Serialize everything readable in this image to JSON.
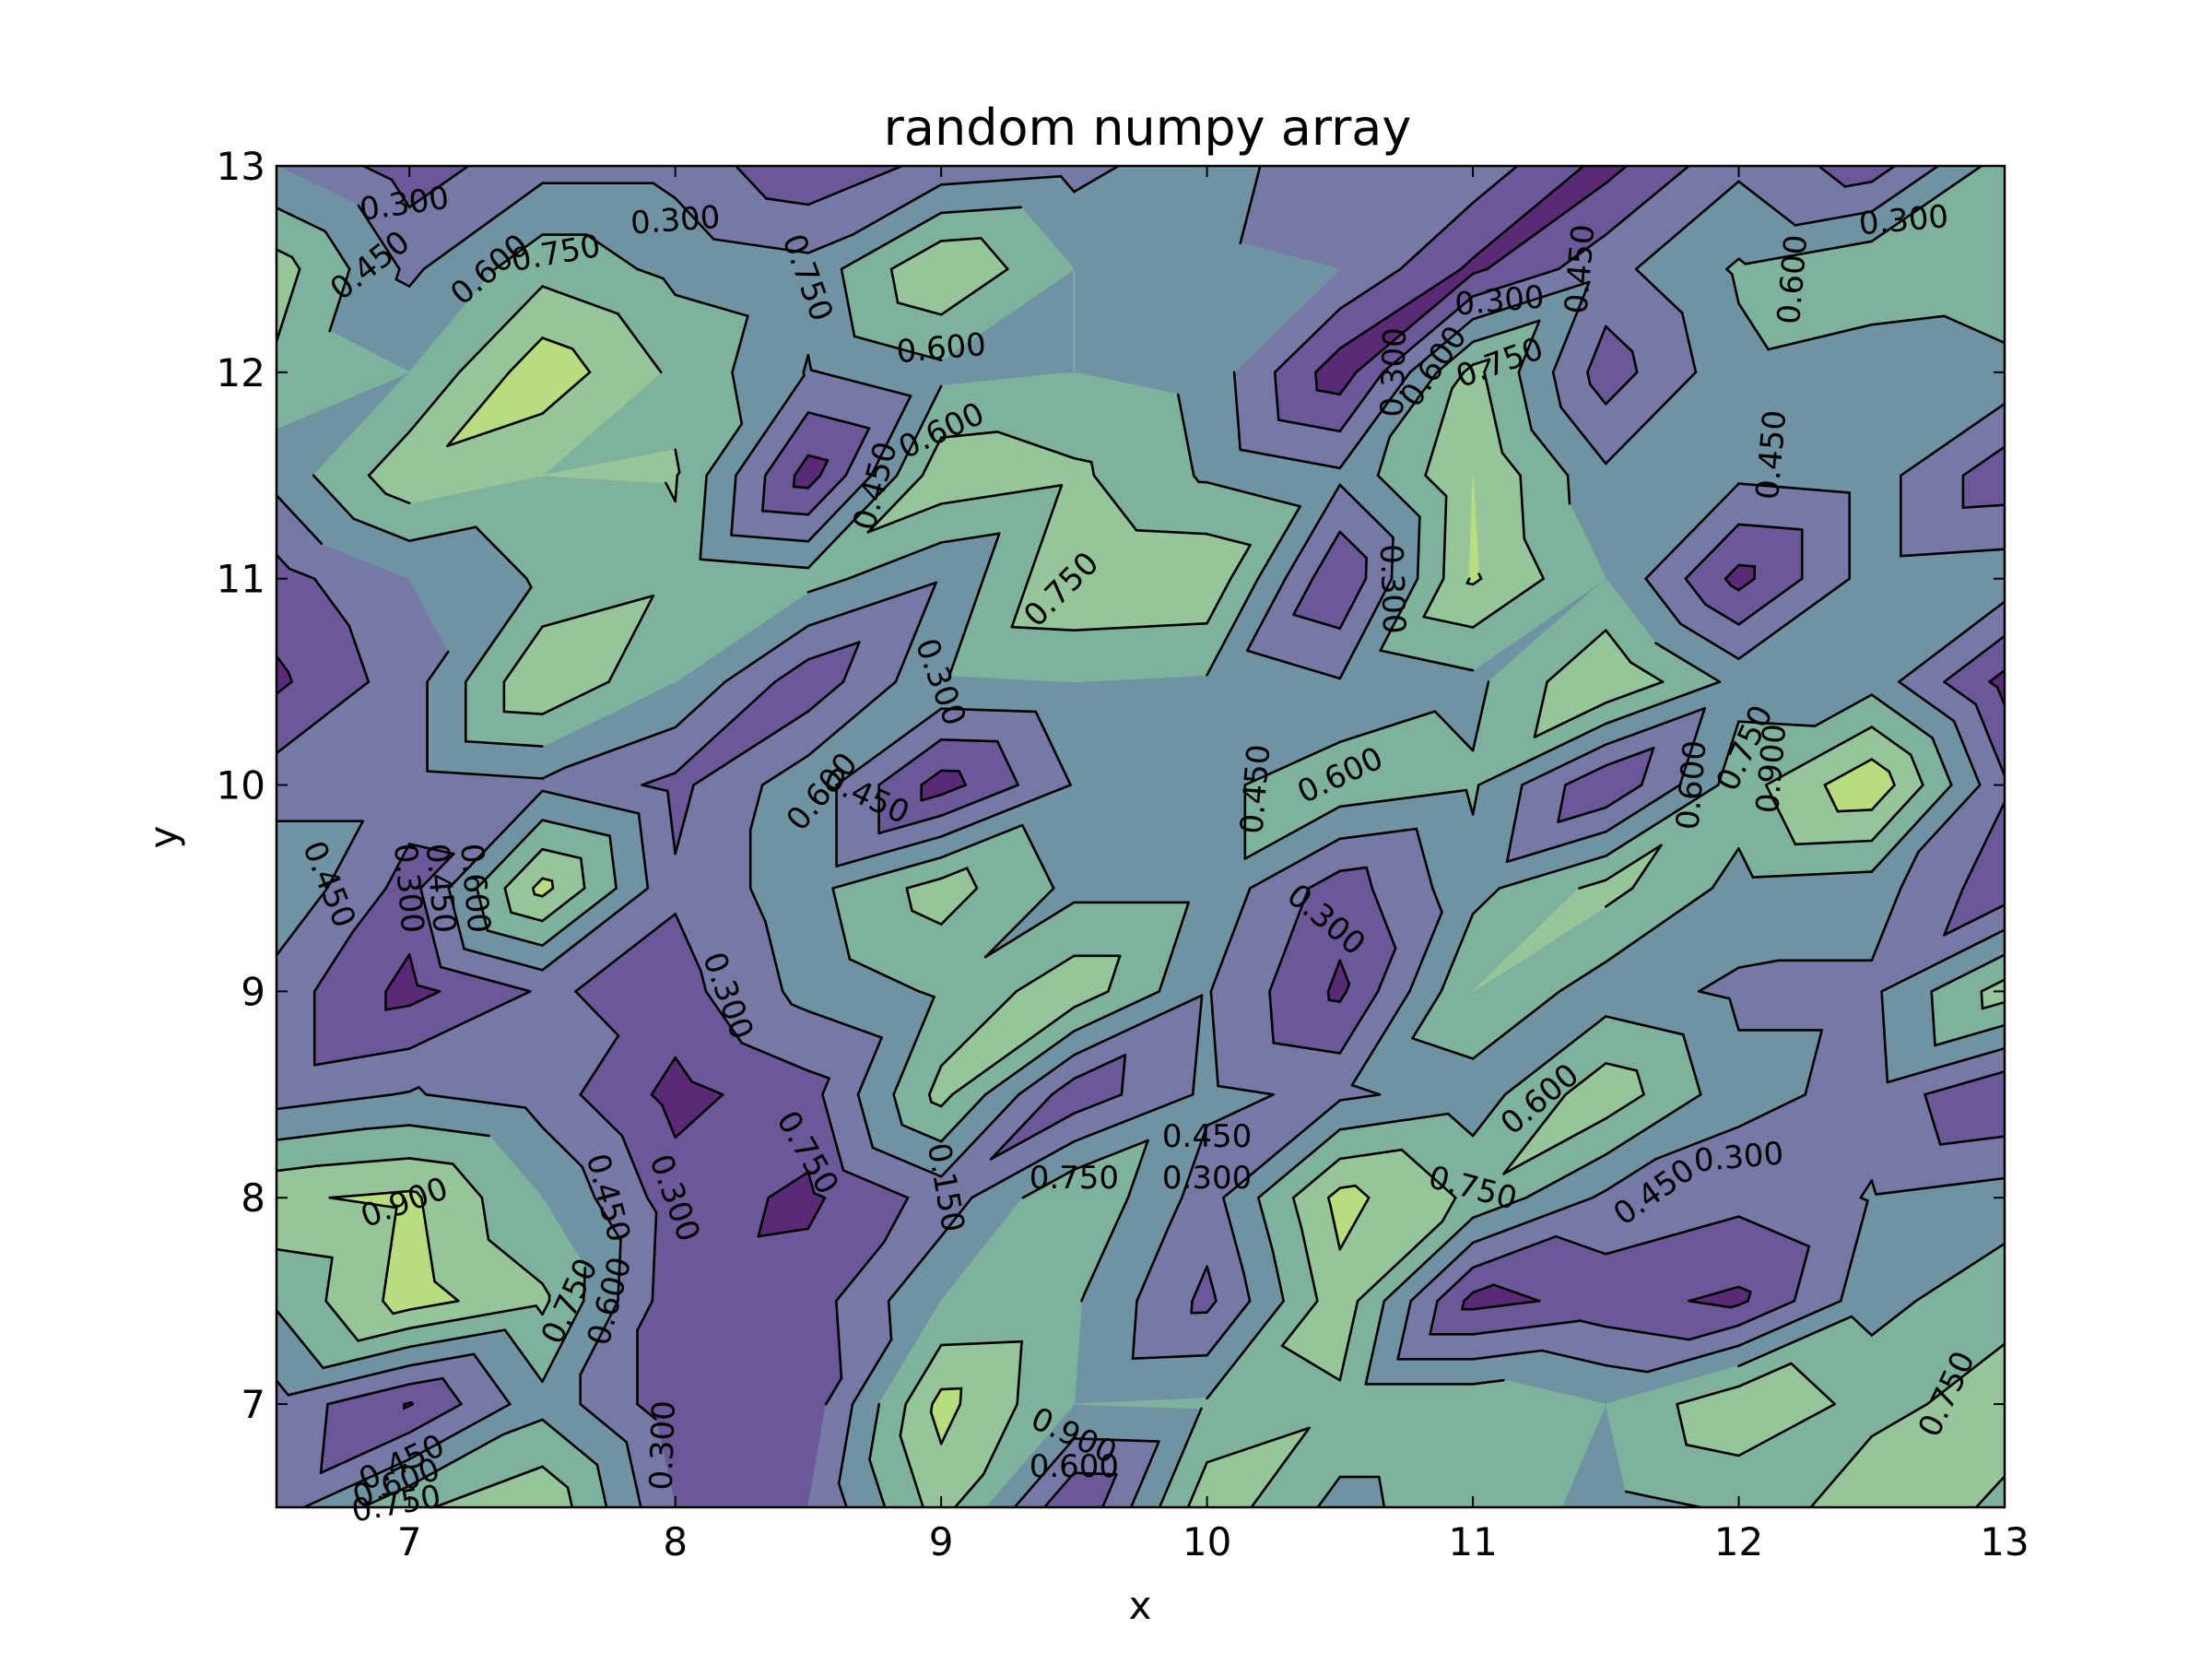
{
  "chart_data": {
    "type": "contourf",
    "title": "random numpy array",
    "xlabel": "x",
    "ylabel": "y",
    "xlim": [
      6.5,
      13
    ],
    "ylim": [
      6.5,
      13
    ],
    "x_ticks": [
      7,
      8,
      9,
      10,
      11,
      12,
      13
    ],
    "y_ticks": [
      7,
      8,
      9,
      10,
      11,
      12,
      13
    ],
    "x_tick_labels": [
      "7",
      "8",
      "9",
      "10",
      "11",
      "12",
      "13"
    ],
    "y_tick_labels": [
      "7",
      "8",
      "9",
      "10",
      "11",
      "12",
      "13"
    ],
    "levels": [
      0.0,
      0.15,
      0.3,
      0.45,
      0.6,
      0.75,
      0.9,
      1.05
    ],
    "level_colors": [
      "#5b2a76",
      "#6b5898",
      "#7679a5",
      "#6f93a3",
      "#7eb29c",
      "#96c59a",
      "#b8dd80",
      "#dfe864"
    ],
    "grid": false,
    "x": [
      6.5,
      7.0,
      7.5,
      8.0,
      8.5,
      9.0,
      9.5,
      10.0,
      10.5,
      11.0,
      11.5,
      12.0,
      12.5,
      13.0
    ],
    "y": [
      6.5,
      7.0,
      7.5,
      8.0,
      8.5,
      9.0,
      9.5,
      10.0,
      10.5,
      11.0,
      11.5,
      12.0,
      12.5,
      13.0
    ],
    "z": [
      [
        0.38,
        0.72,
        0.88,
        0.3,
        0.3,
        0.82,
        0.15,
        0.85,
        0.55,
        0.7,
        0.55,
        0.62,
        0.86,
        0.72
      ],
      [
        0.4,
        0.14,
        0.55,
        0.2,
        0.2,
        0.95,
        0.6,
        0.62,
        0.72,
        0.72,
        0.6,
        0.88,
        0.7,
        0.82
      ],
      [
        0.62,
        0.97,
        0.78,
        0.2,
        0.22,
        0.6,
        0.62,
        0.26,
        0.85,
        0.1,
        0.2,
        0.12,
        0.55,
        0.7
      ],
      [
        0.88,
        0.93,
        0.6,
        0.22,
        0.12,
        0.36,
        0.75,
        0.38,
        0.95,
        0.72,
        0.42,
        0.34,
        0.46,
        0.52
      ],
      [
        0.38,
        0.46,
        0.38,
        0.1,
        0.24,
        0.8,
        0.2,
        0.48,
        0.42,
        0.52,
        0.85,
        0.5,
        0.4,
        0.15
      ],
      [
        0.38,
        0.1,
        0.32,
        0.24,
        0.5,
        0.62,
        0.85,
        0.46,
        0.12,
        0.75,
        0.52,
        0.42,
        0.42,
        0.82
      ],
      [
        0.58,
        0.24,
        0.95,
        0.32,
        0.55,
        0.82,
        0.56,
        0.56,
        0.22,
        0.55,
        0.8,
        0.55,
        0.52,
        0.2
      ],
      [
        0.38,
        0.38,
        0.42,
        0.26,
        0.55,
        0.08,
        0.46,
        0.56,
        0.7,
        0.62,
        0.16,
        0.68,
        1.02,
        0.32
      ],
      [
        0.12,
        0.38,
        0.9,
        0.6,
        0.2,
        0.58,
        0.6,
        0.58,
        0.46,
        0.56,
        0.9,
        0.55,
        0.54,
        0.1
      ],
      [
        0.24,
        0.45,
        0.62,
        0.72,
        0.66,
        0.46,
        0.9,
        0.88,
        0.15,
        0.92,
        0.6,
        0.1,
        0.52,
        0.55
      ],
      [
        0.5,
        0.86,
        0.75,
        0.76,
        0.08,
        0.86,
        0.78,
        0.58,
        0.48,
        0.9,
        0.48,
        0.48,
        0.52,
        0.2
      ],
      [
        0.72,
        0.6,
        1.0,
        0.72,
        0.44,
        0.56,
        0.6,
        0.55,
        0.06,
        0.8,
        0.22,
        0.56,
        0.48,
        0.56
      ],
      [
        0.82,
        0.42,
        0.7,
        0.56,
        0.5,
        0.9,
        0.6,
        0.5,
        0.45,
        0.12,
        0.4,
        0.62,
        0.74,
        0.7
      ],
      [
        0.45,
        0.22,
        0.4,
        0.4,
        0.18,
        0.35,
        0.4,
        0.55,
        0.3,
        0.4,
        0.1,
        0.42,
        0.22,
        0.68
      ]
    ],
    "contour_labels": [
      {
        "text": "0.300",
        "x": 6.98,
        "y": 12.82,
        "angle": -8
      },
      {
        "text": "0.300",
        "x": 8.0,
        "y": 12.74,
        "angle": -4
      },
      {
        "text": "0.450",
        "x": 6.85,
        "y": 12.52,
        "angle": -38
      },
      {
        "text": "0.600",
        "x": 7.3,
        "y": 12.5,
        "angle": -40
      },
      {
        "text": "0.750",
        "x": 7.55,
        "y": 12.58,
        "angle": -10
      },
      {
        "text": "0.750",
        "x": 8.5,
        "y": 12.46,
        "angle": 70
      },
      {
        "text": "0.600",
        "x": 9.0,
        "y": 12.12,
        "angle": -5
      },
      {
        "text": "0.600",
        "x": 9.0,
        "y": 11.72,
        "angle": -25
      },
      {
        "text": "0.450",
        "x": 8.75,
        "y": 11.45,
        "angle": -75
      },
      {
        "text": "0.750",
        "x": 9.45,
        "y": 10.95,
        "angle": -45
      },
      {
        "text": "0.300",
        "x": 9.0,
        "y": 10.5,
        "angle": 70
      },
      {
        "text": "0.300",
        "x": 10.7,
        "y": 12.0,
        "angle": -88
      },
      {
        "text": "0.600",
        "x": 10.85,
        "y": 12.03,
        "angle": -55
      },
      {
        "text": "0.750",
        "x": 11.1,
        "y": 12.05,
        "angle": -20
      },
      {
        "text": "0.300",
        "x": 10.7,
        "y": 10.95,
        "angle": 88
      },
      {
        "text": "0.300",
        "x": 11.1,
        "y": 12.35,
        "angle": -5
      },
      {
        "text": "0.450",
        "x": 11.4,
        "y": 12.5,
        "angle": -85
      },
      {
        "text": "0.600",
        "x": 12.2,
        "y": 12.45,
        "angle": -85
      },
      {
        "text": "0.300",
        "x": 12.62,
        "y": 12.74,
        "angle": -5
      },
      {
        "text": "0.450",
        "x": 12.12,
        "y": 11.6,
        "angle": -85
      },
      {
        "text": "0.600",
        "x": 8.55,
        "y": 9.97,
        "angle": -50
      },
      {
        "text": "0.450",
        "x": 8.72,
        "y": 9.95,
        "angle": 25
      },
      {
        "text": "0.450",
        "x": 10.18,
        "y": 9.98,
        "angle": -85
      },
      {
        "text": "0.600",
        "x": 10.5,
        "y": 10.05,
        "angle": -25
      },
      {
        "text": "0.300",
        "x": 10.45,
        "y": 9.35,
        "angle": 40
      },
      {
        "text": "0.600",
        "x": 11.82,
        "y": 10.0,
        "angle": -85
      },
      {
        "text": "0.750",
        "x": 12.02,
        "y": 10.18,
        "angle": -65
      },
      {
        "text": "0.900",
        "x": 12.12,
        "y": 10.08,
        "angle": -85
      },
      {
        "text": "0.450",
        "x": 6.7,
        "y": 9.52,
        "angle": 68
      },
      {
        "text": "0.300",
        "x": 7.0,
        "y": 9.5,
        "angle": 85
      },
      {
        "text": "0.450",
        "x": 7.12,
        "y": 9.5,
        "angle": 85
      },
      {
        "text": "0.600",
        "x": 7.25,
        "y": 9.5,
        "angle": 85
      },
      {
        "text": "0.300",
        "x": 8.2,
        "y": 8.98,
        "angle": 70
      },
      {
        "text": "0.750",
        "x": 8.5,
        "y": 8.22,
        "angle": 60
      },
      {
        "text": "0.450",
        "x": 7.75,
        "y": 8.0,
        "angle": 75
      },
      {
        "text": "0.300",
        "x": 8.0,
        "y": 8.0,
        "angle": 70
      },
      {
        "text": "0.150",
        "x": 9.02,
        "y": 8.05,
        "angle": 80
      },
      {
        "text": "0.750",
        "x": 9.5,
        "y": 8.1,
        "angle": 0
      },
      {
        "text": "0.450",
        "x": 10.0,
        "y": 8.3,
        "angle": 0
      },
      {
        "text": "0.300",
        "x": 10.0,
        "y": 8.1,
        "angle": 0
      },
      {
        "text": "0.750",
        "x": 11.0,
        "y": 8.05,
        "angle": 15
      },
      {
        "text": "0.600",
        "x": 11.25,
        "y": 8.48,
        "angle": -40
      },
      {
        "text": "0.450",
        "x": 11.68,
        "y": 8.03,
        "angle": -35
      },
      {
        "text": "0.300",
        "x": 12.0,
        "y": 8.2,
        "angle": -5
      },
      {
        "text": "0.900",
        "x": 6.98,
        "y": 7.98,
        "angle": -20
      },
      {
        "text": "0.750",
        "x": 7.6,
        "y": 7.5,
        "angle": -65
      },
      {
        "text": "0.600",
        "x": 7.75,
        "y": 7.5,
        "angle": -75
      },
      {
        "text": "0.900",
        "x": 9.5,
        "y": 6.85,
        "angle": 25
      },
      {
        "text": "0.600",
        "x": 9.5,
        "y": 6.7,
        "angle": 0
      },
      {
        "text": "0.300",
        "x": 7.95,
        "y": 6.8,
        "angle": -88
      },
      {
        "text": "0.450",
        "x": 6.97,
        "y": 6.72,
        "angle": -25
      },
      {
        "text": "0.600",
        "x": 6.95,
        "y": 6.62,
        "angle": -20
      },
      {
        "text": "0.750",
        "x": 6.95,
        "y": 6.52,
        "angle": -10
      },
      {
        "text": "0.750",
        "x": 12.78,
        "y": 7.05,
        "angle": -65
      }
    ]
  }
}
